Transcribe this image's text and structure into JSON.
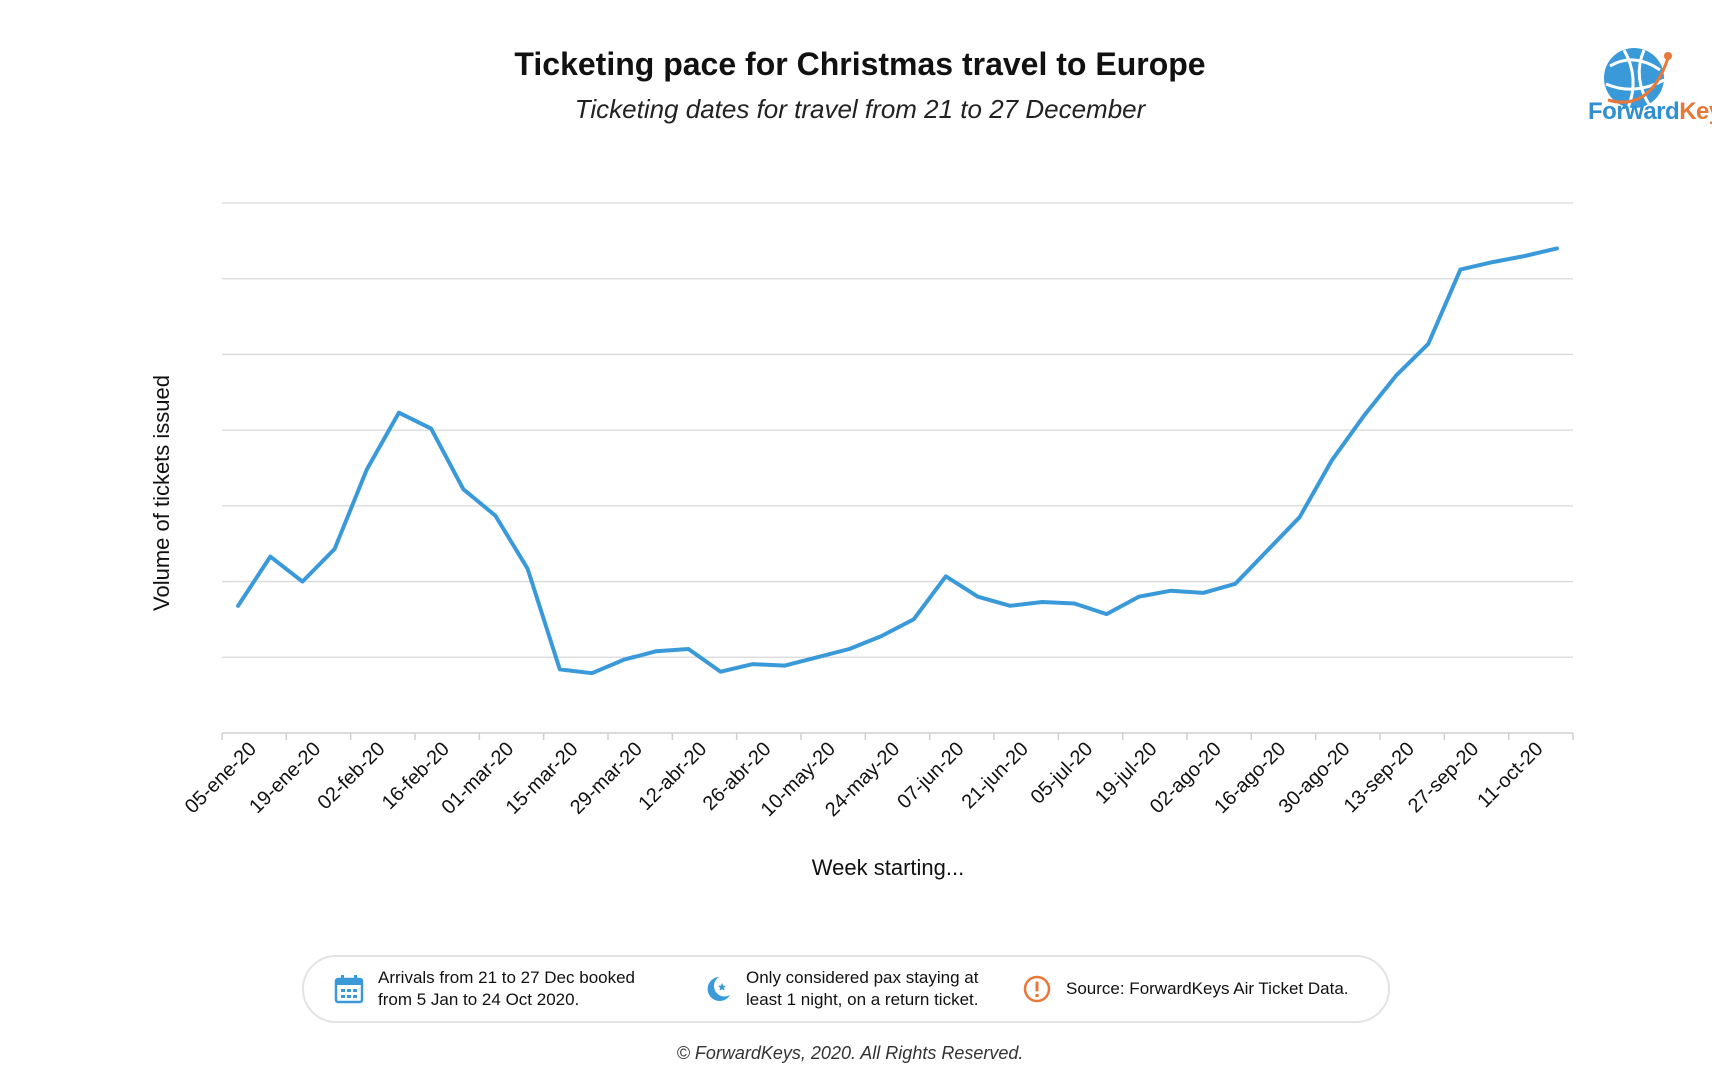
{
  "header": {
    "title": "Ticketing pace for Christmas travel to Europe",
    "subtitle": "Ticketing dates for travel from 21 to 27 December"
  },
  "logo": {
    "part1": "Forward",
    "part2": "Keys",
    "icon": "globe-logo-icon"
  },
  "chart_data": {
    "type": "line",
    "ylabel": "Volume of tickets issued",
    "xlabel": "Week starting...",
    "ylim": [
      0,
      7
    ],
    "y_gridlines": 7,
    "y_tick_labels_shown": false,
    "grid": true,
    "legend": "none",
    "line_color": "#3a9ad9",
    "x_tick_labels": [
      "05-ene-20",
      "19-ene-20",
      "02-feb-20",
      "16-feb-20",
      "01-mar-20",
      "15-mar-20",
      "29-mar-20",
      "12-abr-20",
      "26-abr-20",
      "10-may-20",
      "24-may-20",
      "07-jun-20",
      "21-jun-20",
      "05-jul-20",
      "19-jul-20",
      "02-ago-20",
      "16-ago-20",
      "30-ago-20",
      "13-sep-20",
      "27-sep-20",
      "11-oct-20"
    ],
    "series": [
      {
        "values": [
          1.68,
          2.33,
          2.0,
          2.43,
          3.48,
          4.23,
          4.02,
          3.22,
          2.87,
          2.17,
          0.84,
          0.79,
          0.97,
          1.08,
          1.11,
          0.81,
          0.91,
          0.89,
          1.0,
          1.11,
          1.28,
          1.5,
          2.07,
          1.8,
          1.68,
          1.73,
          1.71,
          1.57,
          1.8,
          1.88,
          1.85,
          1.97,
          2.41,
          2.85,
          3.6,
          4.19,
          4.72,
          5.14,
          6.12,
          6.22,
          6.3,
          6.4
        ]
      }
    ]
  },
  "legend_box": {
    "items": [
      {
        "icon": "calendar-icon",
        "line1": "Arrivals from 21 to 27 Dec booked",
        "line2": "from 5 Jan to 24 Oct 2020."
      },
      {
        "icon": "moon-icon",
        "line1": "Only considered pax staying at",
        "line2": "least 1 night, on a return ticket."
      },
      {
        "icon": "alert-icon",
        "line1": "Source: ForwardKeys Air Ticket Data."
      }
    ]
  },
  "footer": {
    "copyright": "© ForwardKeys, 2020. All Rights Reserved."
  },
  "colors": {
    "line": "#3a9ad9",
    "grid": "#d9d9d9",
    "brand_blue": "#2f8fd0",
    "brand_orange": "#e8773a"
  }
}
